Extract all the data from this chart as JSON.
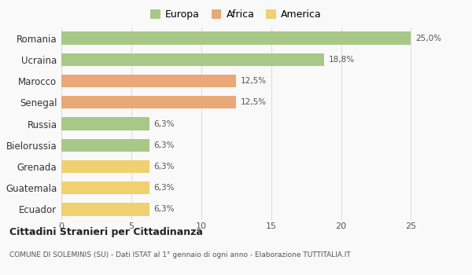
{
  "categories": [
    "Romania",
    "Ucraina",
    "Marocco",
    "Senegal",
    "Russia",
    "Bielorussia",
    "Grenada",
    "Guatemala",
    "Ecuador"
  ],
  "values": [
    25.0,
    18.8,
    12.5,
    12.5,
    6.3,
    6.3,
    6.3,
    6.3,
    6.3
  ],
  "labels": [
    "25,0%",
    "18,8%",
    "12,5%",
    "12,5%",
    "6,3%",
    "6,3%",
    "6,3%",
    "6,3%",
    "6,3%"
  ],
  "colors": [
    "#a8c888",
    "#a8c888",
    "#e8a878",
    "#e8a878",
    "#a8c888",
    "#a8c888",
    "#f0d070",
    "#f0d070",
    "#f0d070"
  ],
  "legend": [
    {
      "label": "Europa",
      "color": "#a8c888"
    },
    {
      "label": "Africa",
      "color": "#e8a878"
    },
    {
      "label": "America",
      "color": "#f0d070"
    }
  ],
  "xlim": [
    0,
    27
  ],
  "xticks": [
    0,
    5,
    10,
    15,
    20,
    25
  ],
  "title": "Cittadini Stranieri per Cittadinanza",
  "subtitle": "COMUNE DI SOLEMINIS (SU) - Dati ISTAT al 1° gennaio di ogni anno - Elaborazione TUTTITALIA.IT",
  "background_color": "#f9f9f9",
  "grid_color": "#dddddd",
  "bar_height": 0.6
}
